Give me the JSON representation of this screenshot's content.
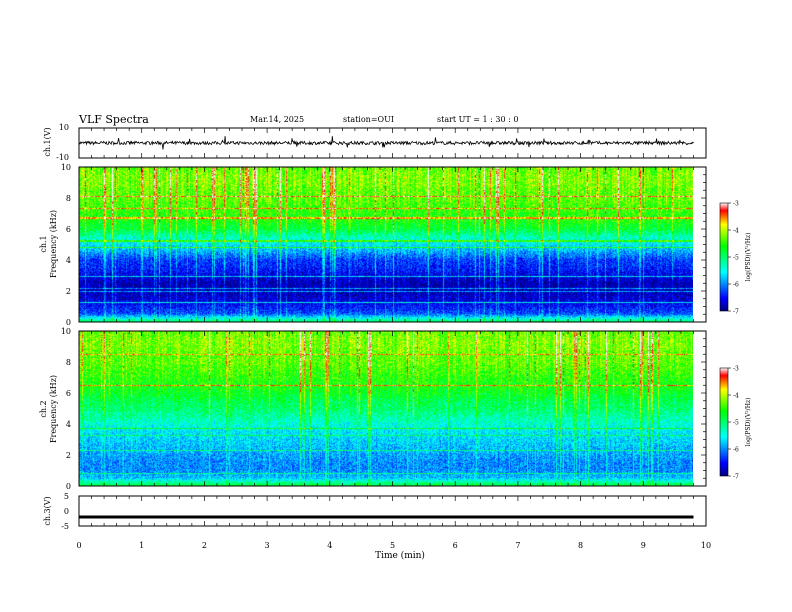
{
  "header": {
    "title": "VLF Spectra",
    "date": "Mar.14, 2025",
    "station": "station=OUI",
    "start_ut": "start  UT =   1 : 30 : 0"
  },
  "panels": {
    "ch1_wave": {
      "ylabel": "ch.1(V)",
      "ytick_labels": [
        "10",
        "-10"
      ]
    },
    "ch1_spec": {
      "ylabel_line1": "ch.1",
      "ylabel_line2": "Frequency (kHz)",
      "ytick_labels": [
        "0",
        "2",
        "4",
        "6",
        "8",
        "10"
      ]
    },
    "ch2_spec": {
      "ylabel_line1": "ch.2",
      "ylabel_line2": "Frequency (kHz)",
      "ytick_labels": [
        "0",
        "2",
        "4",
        "6",
        "8",
        "10"
      ]
    },
    "ch3_wave": {
      "ylabel": "ch.3(V)",
      "ytick_labels": [
        "5",
        "0",
        "-5"
      ]
    }
  },
  "colorbar": {
    "label": "log(PSD)(V²/Hz)",
    "tick_labels": [
      "-3",
      "-4",
      "-5",
      "-6",
      "-7"
    ]
  },
  "xaxis": {
    "label": "Time (min)",
    "tick_labels": [
      "0",
      "1",
      "2",
      "3",
      "4",
      "5",
      "6",
      "7",
      "8",
      "9",
      "10"
    ]
  },
  "chart_data": [
    {
      "type": "line",
      "name": "ch.1 waveform",
      "xlim": [
        0,
        10
      ],
      "ylim": [
        -10,
        10
      ],
      "x": [
        0,
        1,
        2,
        3,
        4,
        5,
        6,
        7,
        8,
        9,
        9.8
      ],
      "y": [
        0,
        0,
        0,
        0,
        0,
        0,
        0,
        0,
        0,
        0,
        0
      ]
    },
    {
      "type": "heatmap",
      "name": "ch.1",
      "xlabel": "Time (min)",
      "ylabel": "Frequency (kHz)",
      "xlim": [
        0,
        10
      ],
      "ylim": [
        0,
        10
      ],
      "x_end": 9.8,
      "freq_khz": [
        0,
        0.5,
        1,
        1.5,
        2,
        2.5,
        3,
        3.5,
        4,
        4.5,
        5,
        5.5,
        6,
        6.5,
        7,
        7.5,
        8,
        8.5,
        9,
        9.5,
        10
      ],
      "log_psd_profile": [
        -5.0,
        -6.2,
        -6.5,
        -6.7,
        -6.8,
        -6.8,
        -6.6,
        -6.4,
        -6.3,
        -5.9,
        -5.6,
        -5.3,
        -4.8,
        -4.6,
        -4.5,
        -4.4,
        -4.3,
        -4.3,
        -4.2,
        -4.2,
        -4.3
      ],
      "colorbar_range": [
        -7,
        -3
      ]
    },
    {
      "type": "heatmap",
      "name": "ch.2",
      "xlabel": "Time (min)",
      "ylabel": "Frequency (kHz)",
      "xlim": [
        0,
        10
      ],
      "ylim": [
        0,
        10
      ],
      "x_end": 9.8,
      "freq_khz": [
        0,
        0.5,
        1,
        1.5,
        2,
        2.5,
        3,
        3.5,
        4,
        4.5,
        5,
        5.5,
        6,
        6.5,
        7,
        7.5,
        8,
        8.5,
        9,
        9.5,
        10
      ],
      "log_psd_profile": [
        -4.8,
        -5.8,
        -6.0,
        -6.0,
        -5.9,
        -5.8,
        -5.7,
        -5.6,
        -5.4,
        -5.2,
        -5.0,
        -4.9,
        -4.7,
        -4.6,
        -4.5,
        -4.4,
        -4.3,
        -4.3,
        -4.2,
        -4.2,
        -4.3
      ],
      "colorbar_range": [
        -7,
        -3
      ]
    },
    {
      "type": "line",
      "name": "ch.3 waveform",
      "xlim": [
        0,
        10
      ],
      "ylim": [
        -5,
        5
      ],
      "x": [
        0,
        9.8
      ],
      "y": [
        -2,
        -2
      ]
    }
  ]
}
